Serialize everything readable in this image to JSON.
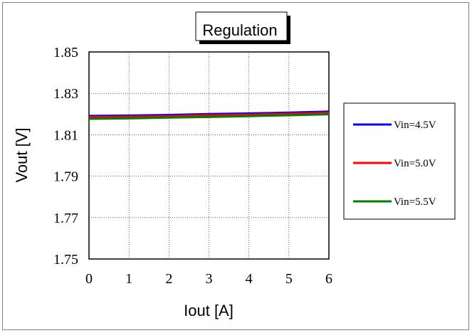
{
  "chart_data": {
    "type": "line",
    "title": "Regulation",
    "xlabel": "Iout [A]",
    "ylabel": "Vout  [V]",
    "xlim": [
      0,
      6
    ],
    "ylim": [
      1.75,
      1.85
    ],
    "xticks": [
      "0",
      "1",
      "2",
      "3",
      "4",
      "5",
      "6"
    ],
    "yticks": [
      "1.75",
      "1.77",
      "1.79",
      "1.81",
      "1.83",
      "1.85"
    ],
    "grid": true,
    "legend_position": "right",
    "x": [
      0,
      1,
      2,
      3,
      4,
      5,
      6
    ],
    "series": [
      {
        "name": "Vin=4.5V",
        "color": "#0000ff",
        "values": [
          1.8191,
          1.8193,
          1.8196,
          1.82,
          1.8203,
          1.8207,
          1.8212
        ]
      },
      {
        "name": "Vin=5.0V",
        "color": "#ff0000",
        "values": [
          1.8185,
          1.8187,
          1.819,
          1.8194,
          1.8197,
          1.8201,
          1.8206
        ]
      },
      {
        "name": "Vin=5.5V",
        "color": "#008000",
        "values": [
          1.8177,
          1.8179,
          1.8183,
          1.8186,
          1.819,
          1.8194,
          1.8199
        ]
      }
    ]
  }
}
